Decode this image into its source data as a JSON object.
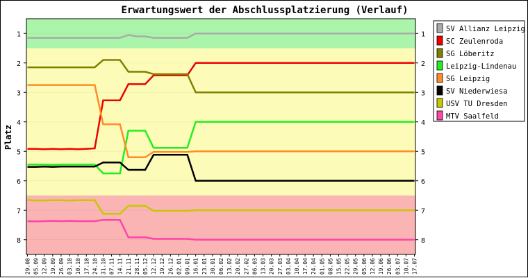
{
  "chart_data": {
    "type": "line",
    "title": "Erwartungswert der Abschlussplatzierung (Verlauf)",
    "ylabel": "Platz",
    "xlabel": "",
    "ylim": [
      0.5,
      8.5
    ],
    "y_ticks": [
      1,
      2,
      3,
      4,
      5,
      6,
      7,
      8
    ],
    "y_inverted": true,
    "legend_position": "right",
    "zones": [
      {
        "from": 0.5,
        "to": 1.5,
        "color": "#aaf5aa"
      },
      {
        "from": 1.5,
        "to": 6.5,
        "color": "#fcfcb8"
      },
      {
        "from": 6.5,
        "to": 8.5,
        "color": "#fab4b4"
      }
    ],
    "categories": [
      "29.08",
      "05.09",
      "12.09",
      "19.09",
      "26.09",
      "03.10",
      "10.10",
      "17.10",
      "24.10",
      "31.10",
      "07.11",
      "14.11",
      "21.11",
      "28.11",
      "05.12",
      "12.12",
      "19.12",
      "26.12",
      "02.01",
      "09.01",
      "16.01",
      "23.01",
      "30.01",
      "06.02",
      "13.02",
      "20.02",
      "27.02",
      "06.03",
      "13.03",
      "20.03",
      "27.03",
      "03.04",
      "10.04",
      "17.04",
      "24.04",
      "01.05",
      "08.05",
      "15.05",
      "22.05",
      "29.05",
      "05.06",
      "12.06",
      "19.06",
      "26.06",
      "03.07",
      "10.07",
      "17.07"
    ],
    "series": [
      {
        "name": "SV Allianz Leipzig",
        "color": "#aaaaaa",
        "values": [
          1.15,
          1.15,
          1.15,
          1.15,
          1.15,
          1.15,
          1.15,
          1.15,
          1.15,
          1.15,
          1.15,
          1.15,
          1.05,
          1.1,
          1.1,
          1.15,
          1.15,
          1.15,
          1.15,
          1.15,
          1.0,
          1.0,
          1.0,
          1.0,
          1.0,
          1.0,
          1.0,
          1.0,
          1.0,
          1.0,
          1.0,
          1.0,
          1.0,
          1.0,
          1.0,
          1.0,
          1.0,
          1.0,
          1.0,
          1.0,
          1.0,
          1.0,
          1.0,
          1.0,
          1.0,
          1.0,
          1.0
        ]
      },
      {
        "name": "SC Zeulenroda",
        "color": "#ee0000",
        "values": [
          4.92,
          4.92,
          4.93,
          4.92,
          4.93,
          4.92,
          4.93,
          4.92,
          4.9,
          3.27,
          3.27,
          3.27,
          2.72,
          2.72,
          2.72,
          2.42,
          2.42,
          2.42,
          2.42,
          2.42,
          2.0,
          2.0,
          2.0,
          2.0,
          2.0,
          2.0,
          2.0,
          2.0,
          2.0,
          2.0,
          2.0,
          2.0,
          2.0,
          2.0,
          2.0,
          2.0,
          2.0,
          2.0,
          2.0,
          2.0,
          2.0,
          2.0,
          2.0,
          2.0,
          2.0,
          2.0,
          2.0
        ]
      },
      {
        "name": "SG Löberitz",
        "color": "#808000",
        "values": [
          2.15,
          2.15,
          2.15,
          2.15,
          2.15,
          2.15,
          2.15,
          2.15,
          2.15,
          1.9,
          1.9,
          1.9,
          2.3,
          2.3,
          2.3,
          2.38,
          2.38,
          2.38,
          2.38,
          2.38,
          3.0,
          3.0,
          3.0,
          3.0,
          3.0,
          3.0,
          3.0,
          3.0,
          3.0,
          3.0,
          3.0,
          3.0,
          3.0,
          3.0,
          3.0,
          3.0,
          3.0,
          3.0,
          3.0,
          3.0,
          3.0,
          3.0,
          3.0,
          3.0,
          3.0,
          3.0,
          3.0
        ]
      },
      {
        "name": "Leipzig-Lindenau",
        "color": "#22ee22",
        "values": [
          5.45,
          5.45,
          5.45,
          5.46,
          5.45,
          5.45,
          5.45,
          5.45,
          5.45,
          5.75,
          5.75,
          5.75,
          4.3,
          4.3,
          4.3,
          4.88,
          4.88,
          4.88,
          4.88,
          4.88,
          4.0,
          4.0,
          4.0,
          4.0,
          4.0,
          4.0,
          4.0,
          4.0,
          4.0,
          4.0,
          4.0,
          4.0,
          4.0,
          4.0,
          4.0,
          4.0,
          4.0,
          4.0,
          4.0,
          4.0,
          4.0,
          4.0,
          4.0,
          4.0,
          4.0,
          4.0,
          4.0
        ]
      },
      {
        "name": "SG Leipzig",
        "color": "#ff8c28",
        "values": [
          2.75,
          2.75,
          2.75,
          2.75,
          2.75,
          2.75,
          2.75,
          2.75,
          2.75,
          4.08,
          4.08,
          4.08,
          5.2,
          5.2,
          5.2,
          5.02,
          5.02,
          5.02,
          5.02,
          5.02,
          5.0,
          5.0,
          5.0,
          5.0,
          5.0,
          5.0,
          5.0,
          5.0,
          5.0,
          5.0,
          5.0,
          5.0,
          5.0,
          5.0,
          5.0,
          5.0,
          5.0,
          5.0,
          5.0,
          5.0,
          5.0,
          5.0,
          5.0,
          5.0,
          5.0,
          5.0,
          5.0
        ]
      },
      {
        "name": "SV Niederwiesa",
        "color": "#000000",
        "values": [
          5.53,
          5.53,
          5.52,
          5.53,
          5.52,
          5.52,
          5.52,
          5.52,
          5.52,
          5.38,
          5.38,
          5.38,
          5.63,
          5.63,
          5.63,
          5.12,
          5.12,
          5.12,
          5.12,
          5.12,
          6.0,
          6.0,
          6.0,
          6.0,
          6.0,
          6.0,
          6.0,
          6.0,
          6.0,
          6.0,
          6.0,
          6.0,
          6.0,
          6.0,
          6.0,
          6.0,
          6.0,
          6.0,
          6.0,
          6.0,
          6.0,
          6.0,
          6.0,
          6.0,
          6.0,
          6.0,
          6.0
        ]
      },
      {
        "name": "USV TU Dresden",
        "color": "#c8c800",
        "values": [
          6.65,
          6.67,
          6.67,
          6.66,
          6.66,
          6.67,
          6.66,
          6.66,
          6.66,
          7.12,
          7.12,
          7.12,
          6.85,
          6.85,
          6.85,
          7.02,
          7.02,
          7.02,
          7.02,
          7.02,
          7.0,
          7.0,
          7.0,
          7.0,
          7.0,
          7.0,
          7.0,
          7.0,
          7.0,
          7.0,
          7.0,
          7.0,
          7.0,
          7.0,
          7.0,
          7.0,
          7.0,
          7.0,
          7.0,
          7.0,
          7.0,
          7.0,
          7.0,
          7.0,
          7.0,
          7.0,
          7.0
        ]
      },
      {
        "name": "MTV Saalfeld",
        "color": "#ff44aa",
        "values": [
          7.37,
          7.38,
          7.37,
          7.36,
          7.37,
          7.36,
          7.37,
          7.37,
          7.37,
          7.33,
          7.33,
          7.33,
          7.92,
          7.92,
          7.92,
          7.97,
          7.97,
          7.97,
          7.97,
          7.97,
          8.0,
          8.0,
          8.0,
          8.0,
          8.0,
          8.0,
          8.0,
          8.0,
          8.0,
          8.0,
          8.0,
          8.0,
          8.0,
          8.0,
          8.0,
          8.0,
          8.0,
          8.0,
          8.0,
          8.0,
          8.0,
          8.0,
          8.0,
          8.0,
          8.0,
          8.0,
          8.0
        ]
      }
    ]
  }
}
